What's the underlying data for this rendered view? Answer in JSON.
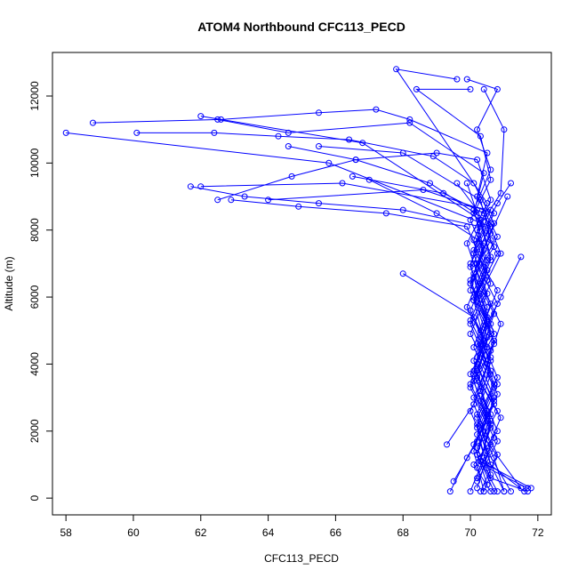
{
  "chart_data": {
    "type": "line",
    "title": "ATOM4 Northbound CFC113_PECD",
    "xlabel": "CFC113_PECD",
    "ylabel": "Altitude (m)",
    "xlim": [
      57.6,
      72.4
    ],
    "ylim": [
      -500,
      13300
    ],
    "xticks": [
      58,
      60,
      62,
      64,
      66,
      68,
      70,
      72
    ],
    "yticks": [
      0,
      2000,
      4000,
      6000,
      8000,
      10000,
      12000
    ],
    "color": "#0000ff",
    "marker": "open-circle",
    "grid": false,
    "legend": "none",
    "series": [
      {
        "points": [
          [
            71.7,
            200
          ],
          [
            70.6,
            600
          ],
          [
            70.2,
            1500
          ],
          [
            70.8,
            2600
          ],
          [
            70.1,
            3800
          ],
          [
            70.5,
            5200
          ],
          [
            70.0,
            6400
          ],
          [
            70.7,
            7500
          ],
          [
            70.2,
            8600
          ],
          [
            69.6,
            9400
          ]
        ]
      },
      {
        "points": [
          [
            69.9,
            9400
          ],
          [
            70.3,
            8200
          ],
          [
            70.6,
            7100
          ],
          [
            70.1,
            5900
          ],
          [
            70.4,
            4700
          ],
          [
            70.0,
            3400
          ],
          [
            70.6,
            2200
          ],
          [
            70.3,
            1100
          ],
          [
            71.8,
            300
          ]
        ]
      },
      {
        "points": [
          [
            70.0,
            200
          ],
          [
            70.4,
            1200
          ],
          [
            70.9,
            2400
          ],
          [
            70.2,
            3600
          ],
          [
            70.5,
            4800
          ],
          [
            70.1,
            6000
          ],
          [
            70.6,
            7200
          ],
          [
            70.3,
            8300
          ],
          [
            66.8,
            10600
          ],
          [
            62.0,
            11400
          ]
        ]
      },
      {
        "points": [
          [
            62.5,
            11300
          ],
          [
            64.6,
            10900
          ],
          [
            68.2,
            11200
          ],
          [
            70.4,
            9700
          ],
          [
            70.1,
            8500
          ],
          [
            70.8,
            7300
          ],
          [
            70.2,
            6100
          ],
          [
            70.6,
            4900
          ],
          [
            70.0,
            3700
          ],
          [
            70.5,
            2500
          ],
          [
            70.2,
            1300
          ],
          [
            71.6,
            200
          ]
        ]
      },
      {
        "points": [
          [
            69.4,
            200
          ],
          [
            69.9,
            1200
          ],
          [
            70.5,
            2300
          ],
          [
            70.1,
            3500
          ],
          [
            70.7,
            4600
          ],
          [
            70.3,
            5800
          ],
          [
            70.0,
            7000
          ],
          [
            70.6,
            8100
          ],
          [
            65.8,
            10000
          ],
          [
            58.0,
            10900
          ]
        ]
      },
      {
        "points": [
          [
            58.8,
            11200
          ],
          [
            62.6,
            11300
          ],
          [
            65.5,
            11500
          ],
          [
            67.2,
            11600
          ],
          [
            68.2,
            11300
          ],
          [
            70.5,
            10300
          ],
          [
            70.2,
            9000
          ],
          [
            70.8,
            7800
          ],
          [
            70.1,
            6600
          ],
          [
            70.5,
            5400
          ],
          [
            70.2,
            4200
          ],
          [
            70.7,
            3000
          ],
          [
            70.4,
            1800
          ],
          [
            71.5,
            300
          ]
        ]
      },
      {
        "points": [
          [
            70.2,
            300
          ],
          [
            70.6,
            1600
          ],
          [
            70.1,
            2800
          ],
          [
            70.5,
            4000
          ],
          [
            70.9,
            5200
          ],
          [
            70.3,
            6400
          ],
          [
            69.9,
            7600
          ],
          [
            70.5,
            8800
          ],
          [
            67.8,
            12800
          ],
          [
            69.6,
            12500
          ]
        ]
      },
      {
        "points": [
          [
            69.9,
            12500
          ],
          [
            70.8,
            12200
          ],
          [
            70.2,
            11000
          ],
          [
            70.6,
            9800
          ],
          [
            70.1,
            8600
          ],
          [
            70.4,
            7400
          ],
          [
            70.0,
            6200
          ],
          [
            70.6,
            5000
          ],
          [
            70.2,
            3800
          ],
          [
            70.5,
            2600
          ],
          [
            70.1,
            1400
          ],
          [
            70.4,
            200
          ]
        ]
      },
      {
        "points": [
          [
            70.6,
            200
          ],
          [
            70.1,
            1000
          ],
          [
            70.8,
            2000
          ],
          [
            70.3,
            3200
          ],
          [
            70.6,
            4400
          ],
          [
            70.0,
            5600
          ],
          [
            70.5,
            6800
          ],
          [
            70.2,
            8000
          ],
          [
            70.9,
            9100
          ],
          [
            71.0,
            11000
          ],
          [
            70.4,
            12200
          ]
        ]
      },
      {
        "points": [
          [
            70.0,
            12200
          ],
          [
            68.4,
            12200
          ],
          [
            70.3,
            10800
          ],
          [
            70.6,
            9500
          ],
          [
            70.0,
            8300
          ],
          [
            70.5,
            7100
          ],
          [
            70.1,
            5900
          ],
          [
            70.7,
            4700
          ],
          [
            70.2,
            3500
          ],
          [
            70.6,
            2300
          ],
          [
            70.3,
            1100
          ],
          [
            70.8,
            200
          ]
        ]
      },
      {
        "points": [
          [
            71.2,
            200
          ],
          [
            70.5,
            1400
          ],
          [
            70.0,
            2600
          ],
          [
            70.6,
            3800
          ],
          [
            70.3,
            5000
          ],
          [
            70.8,
            6200
          ],
          [
            70.1,
            7400
          ],
          [
            70.6,
            8600
          ],
          [
            66.2,
            9400
          ],
          [
            62.0,
            9300
          ]
        ]
      },
      {
        "points": [
          [
            61.7,
            9300
          ],
          [
            63.3,
            9000
          ],
          [
            65.5,
            8800
          ],
          [
            68.0,
            8600
          ],
          [
            70.3,
            8100
          ],
          [
            70.0,
            6900
          ],
          [
            70.5,
            5700
          ],
          [
            70.1,
            4500
          ],
          [
            70.7,
            3300
          ],
          [
            70.2,
            2100
          ],
          [
            70.5,
            900
          ],
          [
            71.7,
            300
          ]
        ]
      },
      {
        "points": [
          [
            70.3,
            200
          ],
          [
            70.8,
            1300
          ],
          [
            70.2,
            2500
          ],
          [
            70.6,
            3700
          ],
          [
            70.0,
            4900
          ],
          [
            70.5,
            6100
          ],
          [
            70.1,
            7300
          ],
          [
            70.7,
            8500
          ],
          [
            68.6,
            9200
          ],
          [
            64.0,
            8900
          ]
        ]
      },
      {
        "points": [
          [
            62.5,
            8900
          ],
          [
            64.7,
            9600
          ],
          [
            66.6,
            10100
          ],
          [
            69.0,
            10300
          ],
          [
            70.2,
            10100
          ],
          [
            70.6,
            8900
          ],
          [
            70.1,
            7700
          ],
          [
            70.5,
            6500
          ],
          [
            70.0,
            5300
          ],
          [
            70.6,
            4100
          ],
          [
            70.3,
            2900
          ],
          [
            70.8,
            1700
          ],
          [
            70.2,
            500
          ]
        ]
      },
      {
        "points": [
          [
            69.5,
            500
          ],
          [
            70.2,
            1700
          ],
          [
            70.7,
            2900
          ],
          [
            70.1,
            4100
          ],
          [
            70.5,
            5300
          ],
          [
            70.0,
            6500
          ],
          [
            70.6,
            7700
          ],
          [
            70.3,
            8900
          ],
          [
            68.0,
            10300
          ],
          [
            65.5,
            10500
          ]
        ]
      },
      {
        "points": [
          [
            64.6,
            10500
          ],
          [
            66.6,
            10100
          ],
          [
            68.8,
            9400
          ],
          [
            70.6,
            8200
          ],
          [
            70.1,
            7000
          ],
          [
            70.6,
            5800
          ],
          [
            70.2,
            4600
          ],
          [
            70.8,
            3400
          ],
          [
            70.3,
            2200
          ],
          [
            70.6,
            1000
          ],
          [
            71.0,
            200
          ]
        ]
      },
      {
        "points": [
          [
            70.7,
            200
          ],
          [
            70.2,
            1300
          ],
          [
            70.6,
            2500
          ],
          [
            70.1,
            3700
          ],
          [
            70.7,
            4900
          ],
          [
            70.3,
            6100
          ],
          [
            70.9,
            7300
          ],
          [
            70.4,
            8500
          ],
          [
            69.2,
            9100
          ],
          [
            66.5,
            9600
          ]
        ]
      },
      {
        "points": [
          [
            67.0,
            9500
          ],
          [
            69.0,
            8500
          ],
          [
            70.4,
            7600
          ],
          [
            70.0,
            6400
          ],
          [
            70.6,
            5200
          ],
          [
            70.2,
            4000
          ],
          [
            70.7,
            2800
          ],
          [
            70.1,
            1600
          ],
          [
            70.5,
            400
          ]
        ]
      },
      {
        "points": [
          [
            69.3,
            1600
          ],
          [
            70.1,
            2800
          ],
          [
            70.5,
            4000
          ],
          [
            70.0,
            5200
          ],
          [
            70.6,
            6400
          ],
          [
            70.2,
            7600
          ],
          [
            70.8,
            8800
          ],
          [
            71.2,
            9400
          ]
        ]
      },
      {
        "points": [
          [
            71.1,
            9000
          ],
          [
            70.6,
            7900
          ],
          [
            70.1,
            6700
          ],
          [
            70.7,
            5500
          ],
          [
            70.3,
            4300
          ],
          [
            70.8,
            3100
          ],
          [
            70.2,
            1900
          ],
          [
            70.6,
            700
          ],
          [
            70.4,
            200
          ]
        ]
      },
      {
        "points": [
          [
            68.0,
            6700
          ],
          [
            70.1,
            5400
          ],
          [
            70.6,
            4200
          ],
          [
            70.1,
            3000
          ],
          [
            70.7,
            1800
          ],
          [
            70.2,
            600
          ]
        ]
      },
      {
        "points": [
          [
            71.5,
            7200
          ],
          [
            70.9,
            6000
          ],
          [
            70.3,
            4800
          ],
          [
            70.8,
            3600
          ],
          [
            70.2,
            2400
          ],
          [
            70.7,
            1200
          ],
          [
            71.0,
            200
          ]
        ]
      },
      {
        "points": [
          [
            62.9,
            8900
          ],
          [
            64.9,
            8700
          ],
          [
            67.5,
            8500
          ],
          [
            69.9,
            8100
          ],
          [
            70.4,
            6900
          ],
          [
            69.9,
            5700
          ],
          [
            70.5,
            4500
          ],
          [
            70.0,
            3300
          ],
          [
            70.6,
            2100
          ],
          [
            70.2,
            900
          ]
        ]
      },
      {
        "points": [
          [
            60.1,
            10900
          ],
          [
            62.4,
            10900
          ],
          [
            64.3,
            10800
          ],
          [
            66.4,
            10700
          ],
          [
            68.9,
            10200
          ],
          [
            70.1,
            9400
          ],
          [
            70.7,
            8200
          ],
          [
            70.2,
            7000
          ],
          [
            70.8,
            5800
          ],
          [
            70.3,
            4600
          ],
          [
            70.7,
            3400
          ],
          [
            70.2,
            2200
          ],
          [
            70.6,
            1000
          ]
        ]
      }
    ]
  }
}
